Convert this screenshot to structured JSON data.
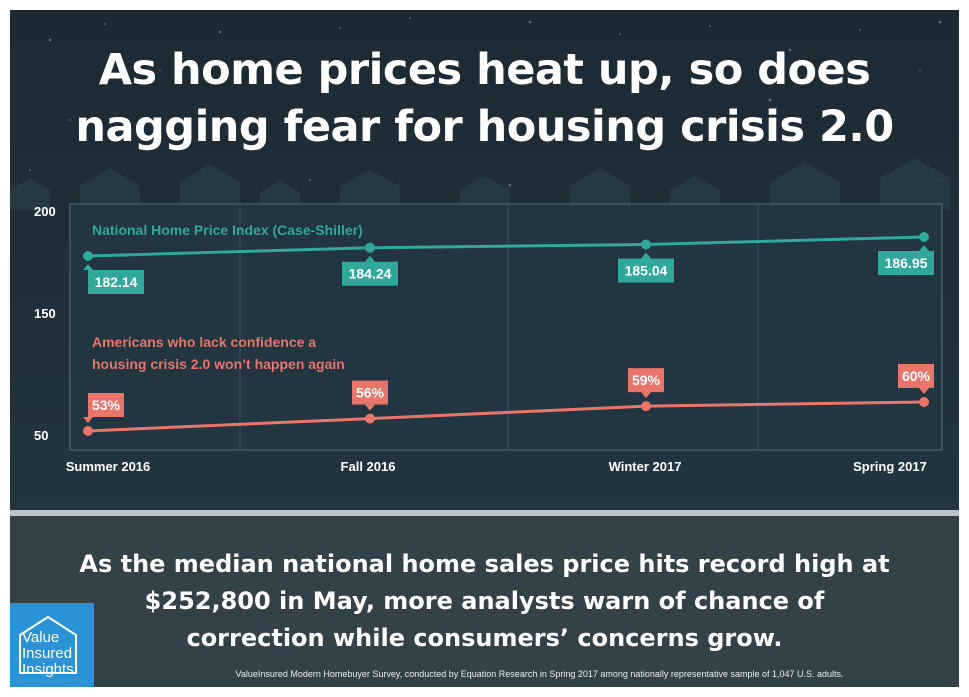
{
  "headline": {
    "line1": "As home prices heat up, so does",
    "line2": "nagging fear for housing crisis 2.0"
  },
  "subhead": {
    "line1": "As the median national home sales price hits record high at",
    "line2": "$252,800 in May, more analysts warn of chance of",
    "line3": "correction while consumers’ concerns grow."
  },
  "source": "ValueInsured Modern Homebuyer Survey, conducted by Equation Research in Spring 2017 among nationally representative sample of 1,047 U.S. adults.",
  "logo": {
    "line1": "Value",
    "line2": "Insured",
    "line3": "Insights"
  },
  "colors": {
    "teal": "#30a89b",
    "coral": "#e8756a",
    "panel_dark": "#1f2f39",
    "panel_bottom": "#334149",
    "logo_blue": "#2a93d5"
  },
  "chart_data": {
    "type": "line",
    "categories": [
      "Summer 2016",
      "Fall 2016",
      "Winter 2017",
      "Spring 2017"
    ],
    "y_ticks": [
      "200",
      "150",
      "50"
    ],
    "ylim": [
      50,
      200
    ],
    "grid": true,
    "series": [
      {
        "name": "National Home Price Index (Case-Shiller)",
        "values": [
          182.14,
          184.24,
          185.04,
          186.95
        ],
        "labels": [
          "182.14",
          "184.24",
          "185.04",
          "186.95"
        ],
        "color": "#30a89b"
      },
      {
        "name": "Americans who lack confidence a housing crisis 2.0 won’t happen again",
        "name_lines": [
          "Americans who lack confidence a",
          "housing crisis 2.0 won’t happen again"
        ],
        "values": [
          53,
          56,
          59,
          60
        ],
        "unit": "%",
        "labels": [
          "53%",
          "56%",
          "59%",
          "60%"
        ],
        "color": "#e8756a"
      }
    ]
  }
}
